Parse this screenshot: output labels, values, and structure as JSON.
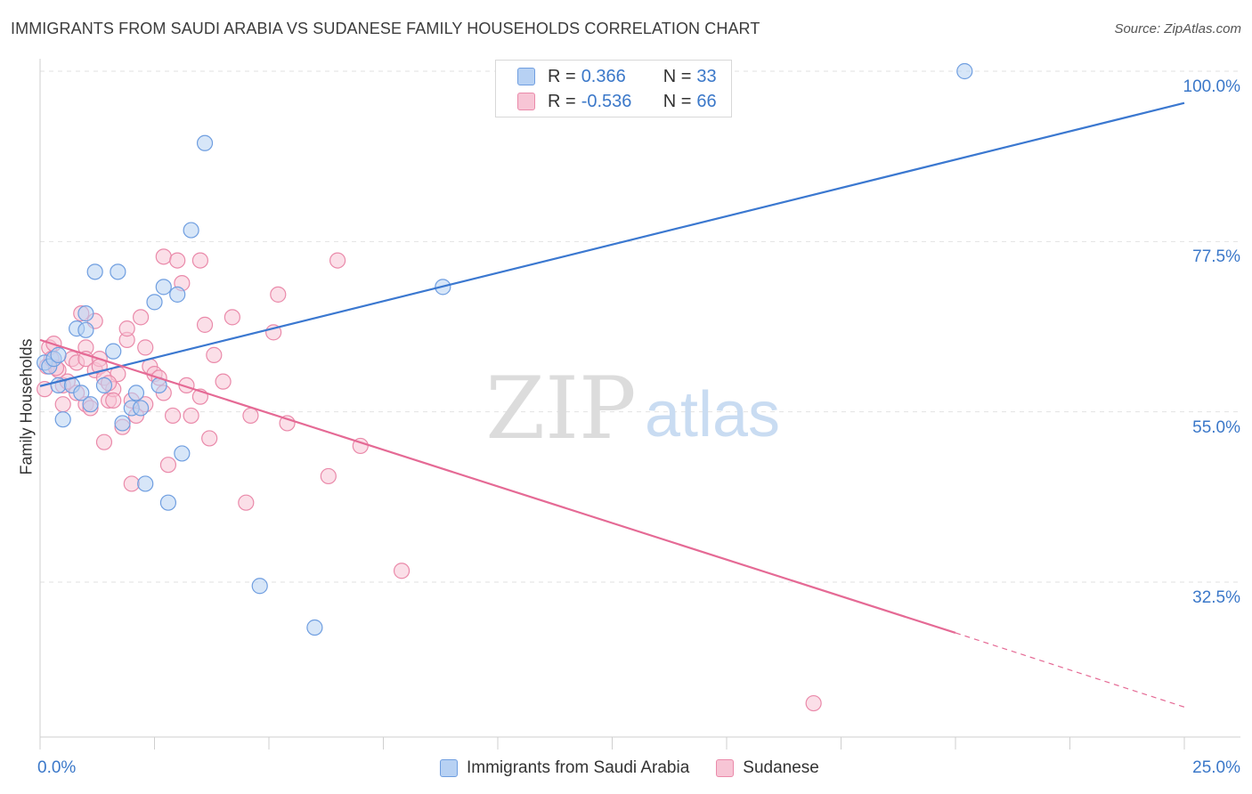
{
  "title": "IMMIGRANTS FROM SAUDI ARABIA VS SUDANESE FAMILY HOUSEHOLDS CORRELATION CHART",
  "source": "Source: ZipAtlas.com",
  "watermark": {
    "zip": "ZIP",
    "atlas": "atlas"
  },
  "legend": {
    "rows": [
      {
        "r_label": "R = ",
        "r_value": "0.366",
        "n_label": "N = ",
        "n_value": "33"
      },
      {
        "r_label": "R = ",
        "r_value": "-0.536",
        "n_label": "N = ",
        "n_value": "66"
      }
    ]
  },
  "colors": {
    "blue_fill": "#b7d1f3",
    "blue_stroke": "#6f9ee0",
    "blue_line": "#3b78d0",
    "pink_fill": "#f7c5d5",
    "pink_stroke": "#ea8aaa",
    "pink_line": "#e56a95",
    "tick_text": "#3b78c9",
    "grid": "#e2e2e2"
  },
  "chart_data": {
    "type": "scatter",
    "title": "IMMIGRANTS FROM SAUDI ARABIA VS SUDANESE FAMILY HOUSEHOLDS CORRELATION CHART",
    "xlabel": "",
    "ylabel": "Family Households",
    "xlim": [
      0,
      25
    ],
    "ylim": [
      10,
      103
    ],
    "x_tick_labels": [
      "0.0%",
      "25.0%"
    ],
    "y_ticks": [
      32.5,
      55.0,
      77.5,
      100.0
    ],
    "y_tick_labels": [
      "32.5%",
      "55.0%",
      "77.5%",
      "100.0%"
    ],
    "grid": true,
    "legend_position": "top-center",
    "series": [
      {
        "name": "Immigrants from Saudi Arabia",
        "color": "#6f9ee0",
        "trend": {
          "x": [
            0.0,
            25.0
          ],
          "y": [
            58.4,
            95.8
          ]
        },
        "points": [
          [
            0.1,
            61.5
          ],
          [
            0.2,
            61.0
          ],
          [
            0.3,
            62.0
          ],
          [
            0.4,
            62.5
          ],
          [
            0.4,
            58.5
          ],
          [
            0.5,
            54.0
          ],
          [
            0.7,
            58.5
          ],
          [
            0.8,
            66.0
          ],
          [
            0.9,
            57.5
          ],
          [
            1.0,
            68.0
          ],
          [
            1.1,
            56.0
          ],
          [
            1.2,
            73.5
          ],
          [
            1.4,
            58.5
          ],
          [
            1.6,
            63.0
          ],
          [
            1.7,
            73.5
          ],
          [
            1.8,
            53.5
          ],
          [
            2.0,
            55.5
          ],
          [
            2.1,
            57.5
          ],
          [
            2.2,
            55.5
          ],
          [
            2.3,
            45.5
          ],
          [
            2.5,
            69.5
          ],
          [
            2.6,
            58.5
          ],
          [
            2.7,
            71.5
          ],
          [
            2.8,
            43.0
          ],
          [
            3.0,
            70.5
          ],
          [
            3.1,
            49.5
          ],
          [
            3.3,
            79.0
          ],
          [
            3.6,
            90.5
          ],
          [
            4.8,
            32.0
          ],
          [
            6.0,
            26.5
          ],
          [
            8.8,
            71.5
          ],
          [
            20.2,
            100.0
          ],
          [
            1.0,
            65.8
          ]
        ]
      },
      {
        "name": "Sudanese",
        "color": "#ea8aaa",
        "trend": {
          "x": [
            0.0,
            20.0
          ],
          "y": [
            64.5,
            25.8
          ]
        },
        "trend_dashed": {
          "x": [
            20.0,
            25.0
          ],
          "y": [
            25.8,
            16.0
          ]
        },
        "points": [
          [
            0.1,
            58.0
          ],
          [
            0.15,
            61.0
          ],
          [
            0.2,
            63.5
          ],
          [
            0.25,
            62.0
          ],
          [
            0.3,
            64.0
          ],
          [
            0.4,
            60.5
          ],
          [
            0.5,
            58.5
          ],
          [
            0.5,
            56.0
          ],
          [
            0.6,
            59.0
          ],
          [
            0.7,
            62.0
          ],
          [
            0.8,
            61.5
          ],
          [
            0.8,
            57.5
          ],
          [
            0.9,
            68.0
          ],
          [
            1.0,
            63.5
          ],
          [
            1.0,
            62.0
          ],
          [
            1.0,
            56.0
          ],
          [
            1.1,
            55.5
          ],
          [
            1.2,
            67.0
          ],
          [
            1.2,
            60.5
          ],
          [
            1.3,
            62.0
          ],
          [
            1.3,
            61.0
          ],
          [
            1.4,
            51.0
          ],
          [
            1.4,
            59.5
          ],
          [
            1.5,
            56.5
          ],
          [
            1.6,
            58.0
          ],
          [
            1.6,
            56.5
          ],
          [
            1.7,
            60.0
          ],
          [
            1.8,
            53.0
          ],
          [
            1.9,
            64.5
          ],
          [
            1.9,
            66.0
          ],
          [
            2.0,
            56.5
          ],
          [
            2.0,
            45.5
          ],
          [
            2.1,
            54.5
          ],
          [
            2.2,
            67.5
          ],
          [
            2.3,
            56.0
          ],
          [
            2.3,
            63.5
          ],
          [
            2.4,
            61.0
          ],
          [
            2.5,
            60.0
          ],
          [
            2.6,
            59.5
          ],
          [
            2.7,
            75.5
          ],
          [
            2.7,
            57.5
          ],
          [
            2.8,
            48.0
          ],
          [
            2.9,
            54.5
          ],
          [
            3.0,
            75.0
          ],
          [
            3.1,
            72.0
          ],
          [
            3.2,
            58.5
          ],
          [
            3.3,
            54.5
          ],
          [
            3.5,
            75.0
          ],
          [
            3.5,
            57.0
          ],
          [
            3.6,
            66.5
          ],
          [
            3.7,
            51.5
          ],
          [
            3.8,
            62.5
          ],
          [
            4.0,
            59.0
          ],
          [
            4.2,
            67.5
          ],
          [
            4.5,
            43.0
          ],
          [
            4.6,
            54.5
          ],
          [
            5.1,
            65.5
          ],
          [
            5.2,
            70.5
          ],
          [
            5.4,
            53.5
          ],
          [
            6.3,
            46.5
          ],
          [
            6.5,
            75.0
          ],
          [
            7.0,
            50.5
          ],
          [
            7.9,
            34.0
          ],
          [
            16.9,
            16.5
          ],
          [
            1.5,
            58.8
          ],
          [
            0.35,
            60.8
          ]
        ]
      }
    ]
  }
}
